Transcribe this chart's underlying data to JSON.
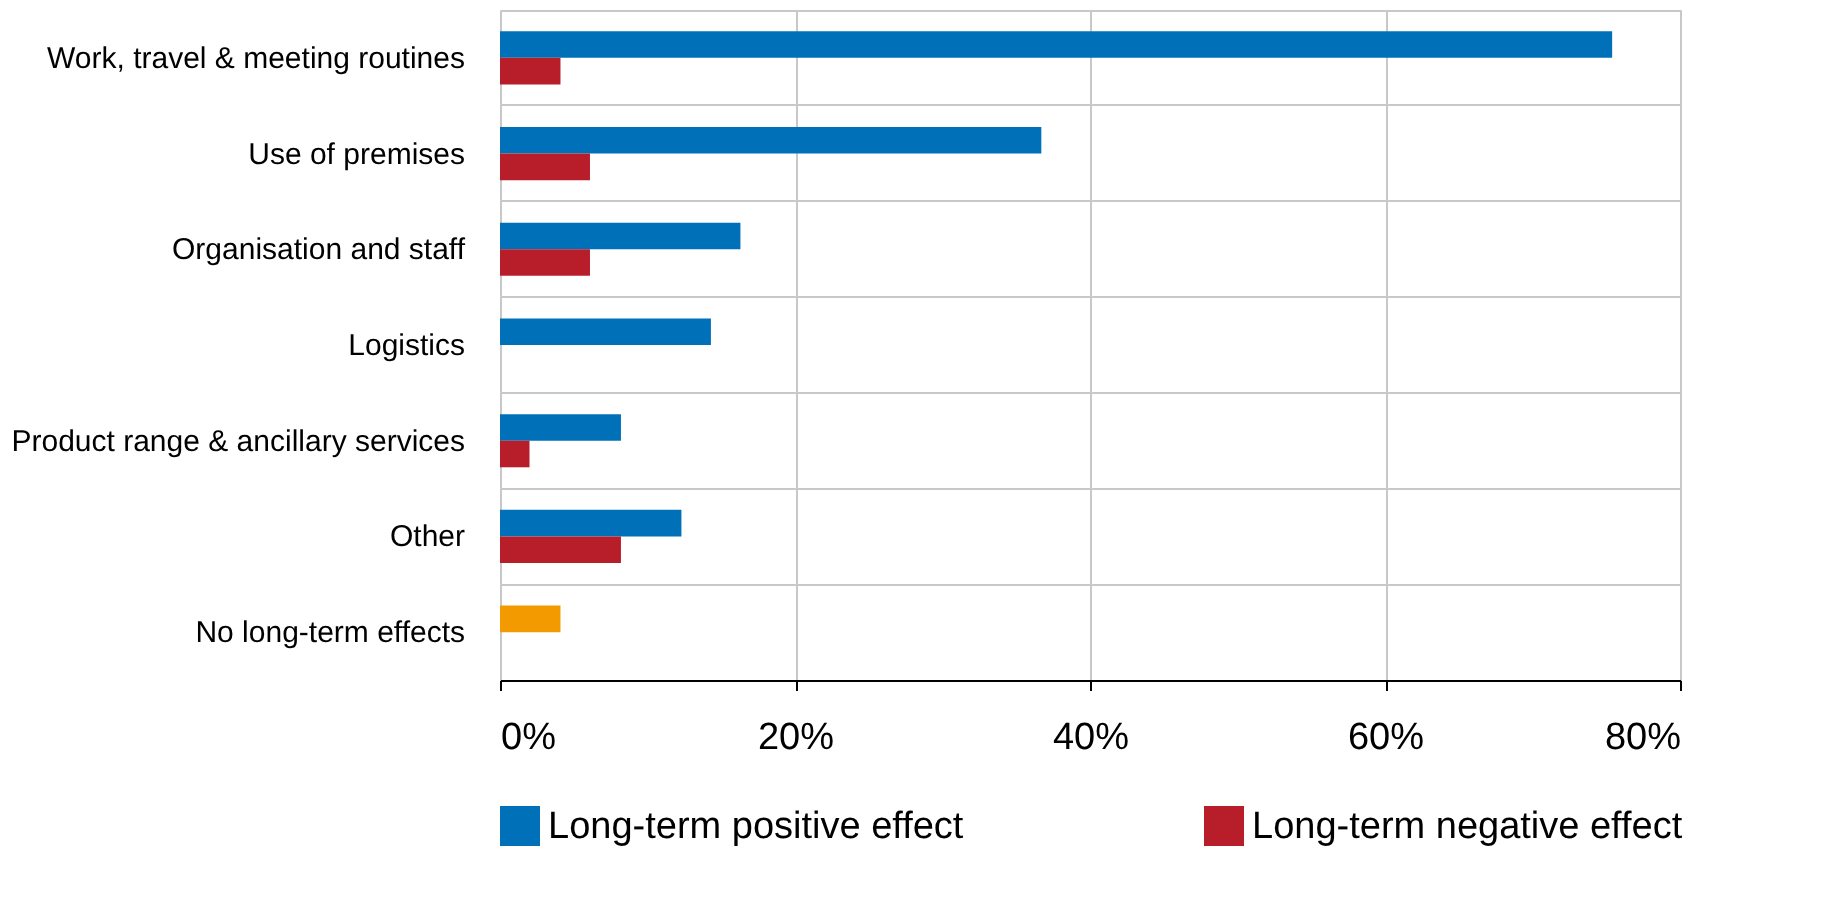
{
  "chart_data": {
    "type": "bar",
    "orientation": "horizontal",
    "categories": [
      "Work, travel & meeting routines",
      "Use of premises",
      "Organisation and staff",
      "Logistics",
      "Product range & ancillary services",
      "Other",
      "No long-term effects"
    ],
    "series": [
      {
        "name": "Long-term positive effect",
        "color": "#0070b8",
        "colors": [
          "#0070b8",
          "#0070b8",
          "#0070b8",
          "#0070b8",
          "#0070b8",
          "#0070b8",
          "#f39a00"
        ],
        "values": [
          75.4,
          36.7,
          16.3,
          14.3,
          8.2,
          12.3,
          4.1
        ]
      },
      {
        "name": "Long-term negative effect",
        "color": "#b81e2a",
        "values": [
          4.1,
          6.1,
          6.1,
          null,
          2.0,
          8.2,
          null
        ]
      }
    ],
    "xlim": [
      0,
      80
    ],
    "xticks": [
      {
        "value": 0,
        "label": "0%"
      },
      {
        "value": 20,
        "label": "20%"
      },
      {
        "value": 40,
        "label": "40%"
      },
      {
        "value": 60,
        "label": "60%"
      },
      {
        "value": 80,
        "label": "80%"
      }
    ],
    "grid": true,
    "legend": "bottom"
  }
}
